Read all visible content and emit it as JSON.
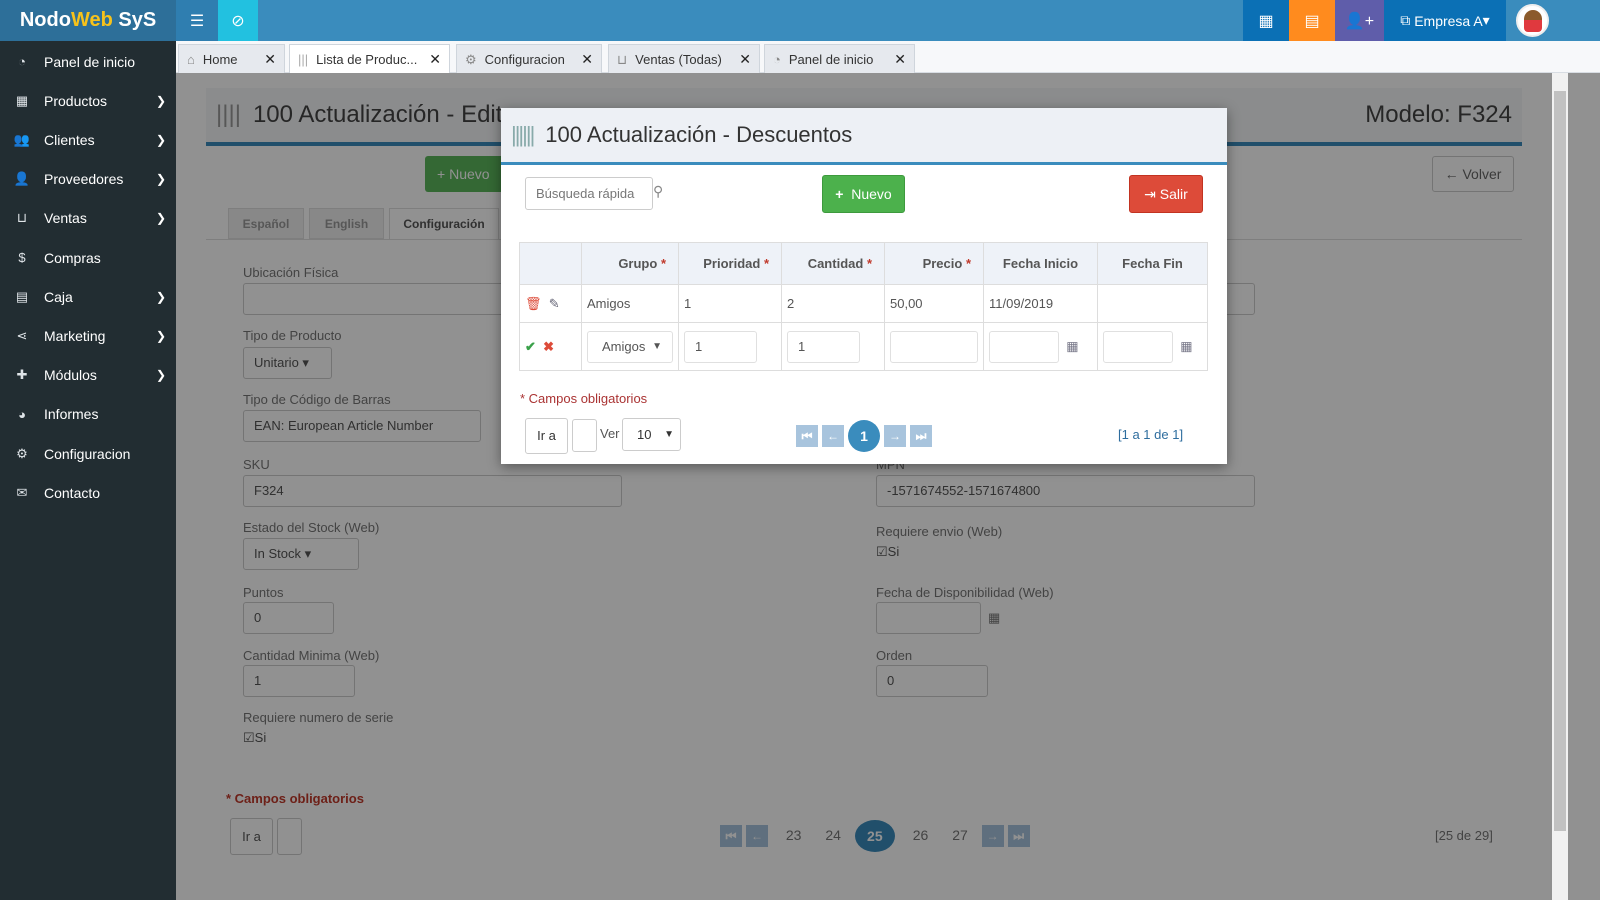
{
  "app": {
    "logo_a": "Nodo",
    "logo_b": "Web",
    "logo_c": " SyS",
    "company": "Empresa A"
  },
  "sidebar": {
    "items": [
      {
        "label": "Panel de inicio",
        "icon": "dashboard-icon",
        "chev": false
      },
      {
        "label": "Productos",
        "icon": "cubes-icon",
        "chev": true
      },
      {
        "label": "Clientes",
        "icon": "users-icon",
        "chev": true
      },
      {
        "label": "Proveedores",
        "icon": "user-icon",
        "chev": true
      },
      {
        "label": "Ventas",
        "icon": "inbox-icon",
        "chev": true
      },
      {
        "label": "Compras",
        "icon": "dollar-icon",
        "chev": false
      },
      {
        "label": "Caja",
        "icon": "cash-register-icon",
        "chev": true
      },
      {
        "label": "Marketing",
        "icon": "share-icon",
        "chev": true
      },
      {
        "label": "Módulos",
        "icon": "puzzle-icon",
        "chev": true
      },
      {
        "label": "Informes",
        "icon": "pie-chart-icon",
        "chev": false
      },
      {
        "label": "Configuracion",
        "icon": "gears-icon",
        "chev": false
      },
      {
        "label": "Contacto",
        "icon": "envelope-icon",
        "chev": false
      }
    ]
  },
  "tabs": [
    {
      "label": "Home"
    },
    {
      "label": "Lista de Produc..."
    },
    {
      "label": "Configuracion"
    },
    {
      "label": "Ventas (Todas)"
    },
    {
      "label": "Panel de inicio"
    }
  ],
  "page": {
    "title": "100 Actualización - Edit",
    "model": "Modelo: F324",
    "new": "Nuevo",
    "back": "Volver",
    "langtabs": [
      "Español",
      "English",
      "Configuración"
    ],
    "ubicacion": "Ubicación Física",
    "tipo_producto": "Tipo de Producto",
    "tipo_producto_val": "Unitario",
    "tipo_codigo": "Tipo de Código de Barras",
    "tipo_codigo_val": "EAN: European Article Number",
    "sku": "SKU",
    "sku_val": "F324",
    "mpn": "MPN",
    "mpn_val": "-1571674552-1571674800",
    "estado": "Estado del Stock (Web)",
    "estado_val": "In Stock",
    "envio": "Requiere envio (Web)",
    "envio_val": "Si",
    "puntos": "Puntos",
    "puntos_val": "0",
    "fecha_disp": "Fecha de Disponibilidad (Web)",
    "cant_min": "Cantidad Minima (Web)",
    "cant_min_val": "1",
    "orden": "Orden",
    "orden_val": "0",
    "serie": "Requiere numero de serie",
    "serie_val": "Si",
    "required": "* Campos obligatorios",
    "goto": "Ir a",
    "pages": [
      "23",
      "24",
      "25",
      "26",
      "27"
    ],
    "current_page": "25",
    "range": "[25 de 29]"
  },
  "modal": {
    "title": "100 Actualización - Descuentos",
    "search_placeholder": "Búsqueda rápida",
    "new": "Nuevo",
    "exit": "Salir",
    "columns": [
      "Grupo",
      "Prioridad",
      "Cantidad",
      "Precio",
      "Fecha Inicio",
      "Fecha Fin"
    ],
    "row": {
      "grupo": "Amigos",
      "prioridad": "1",
      "cantidad": "2",
      "precio": "50,00",
      "fecha_inicio": "11/09/2019",
      "fecha_fin": ""
    },
    "edit": {
      "grupo": "Amigos",
      "prioridad": "1",
      "cantidad": "1",
      "precio": "",
      "fecha_inicio": "",
      "fecha_fin": ""
    },
    "required": "* Campos obligatorios",
    "goto": "Ir a",
    "ver": "Ver",
    "per_page": "10",
    "page": "1",
    "range": "[1 a 1 de 1]"
  }
}
